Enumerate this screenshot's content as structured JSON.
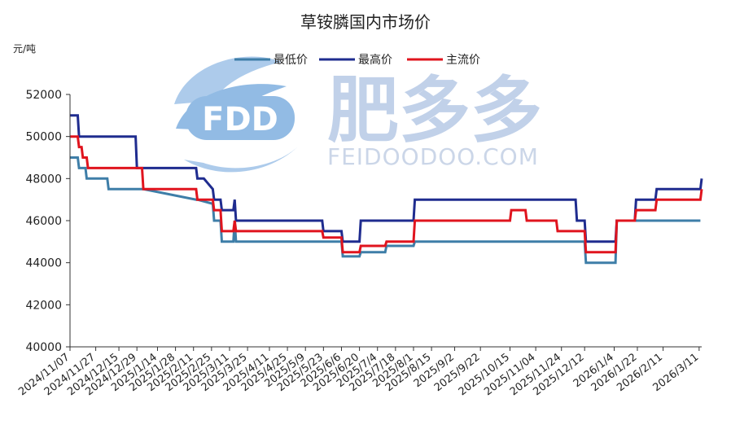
{
  "watermark": {
    "logo_text": "FDD",
    "brand_cn": "肥多多",
    "brand_en": "FEIDOODOO.COM"
  },
  "chart_data": {
    "type": "line",
    "title": "草铵膦国内市场价",
    "ylabel": "元/吨",
    "xlabel": "",
    "ylim": [
      40000,
      52000
    ],
    "yticks": [
      40000,
      42000,
      44000,
      46000,
      48000,
      50000,
      52000
    ],
    "xlim": [
      "2024/11/07",
      "2026/03/13"
    ],
    "xticks": [
      "2024/11/07",
      "2024/11/27",
      "2024/12/15",
      "2024/12/29",
      "2025/1/14",
      "2025/1/28",
      "2025/2/11",
      "2025/2/25",
      "2025/3/11",
      "2025/3/25",
      "2025/4/11",
      "2025/4/25",
      "2025/5/9",
      "2025/5/23",
      "2025/6/6",
      "2025/6/20",
      "2025/7/4",
      "2025/7/18",
      "2025/8/1",
      "2025/8/15",
      "2025/9/2",
      "2025/9/22",
      "2025/10/15",
      "2025/11/04",
      "2025/11/24",
      "2025/12/12",
      "2026/1/4",
      "2026/1/22",
      "2026/2/11",
      "2026/3/11"
    ],
    "grid": false,
    "legend": "top",
    "series": [
      {
        "name": "最低价",
        "color": "#3e7ea8",
        "x": [
          "2024/11/07",
          "2024/11/13",
          "2024/11/14",
          "2024/11/19",
          "2024/11/20",
          "2024/12/06",
          "2024/12/07",
          "2025/1/02",
          "2025/1/03",
          "2025/2/13",
          "2025/2/14",
          "2025/2/26",
          "2025/2/27",
          "2025/3/04",
          "2025/3/05",
          "2025/3/14",
          "2025/3/15",
          "2025/3/16",
          "2025/6/06",
          "2025/6/07",
          "2025/6/20",
          "2025/6/21",
          "2025/7/10",
          "2025/7/11",
          "2025/8/01",
          "2025/8/02",
          "2025/12/12",
          "2025/12/13",
          "2026/1/05",
          "2026/1/06",
          "2026/2/16",
          "2026/2/17",
          "2026/3/12"
        ],
        "values": [
          49000,
          49000,
          48500,
          48500,
          48000,
          48000,
          47500,
          47500,
          47500,
          47000,
          47000,
          46800,
          46000,
          46000,
          45000,
          45000,
          46000,
          45000,
          45000,
          44300,
          44300,
          44500,
          44500,
          44800,
          44800,
          45000,
          45000,
          44000,
          44000,
          46000,
          46000,
          46000,
          46000
        ]
      },
      {
        "name": "最高价",
        "color": "#1f2c8f",
        "x": [
          "2024/11/07",
          "2024/11/13",
          "2024/11/14",
          "2024/12/28",
          "2024/12/29",
          "2025/1/19",
          "2025/1/20",
          "2025/2/13",
          "2025/2/14",
          "2025/2/18",
          "2025/2/19",
          "2025/2/26",
          "2025/2/27",
          "2025/3/04",
          "2025/3/05",
          "2025/3/14",
          "2025/3/15",
          "2025/3/16",
          "2025/5/22",
          "2025/5/23",
          "2025/6/06",
          "2025/6/07",
          "2025/6/20",
          "2025/6/21",
          "2025/8/01",
          "2025/8/02",
          "2025/12/05",
          "2025/12/06",
          "2025/12/12",
          "2025/12/13",
          "2026/1/05",
          "2026/1/06",
          "2026/1/20",
          "2026/1/21",
          "2026/2/05",
          "2026/2/06",
          "2026/3/12",
          "2026/3/13"
        ],
        "values": [
          51000,
          51000,
          50000,
          50000,
          48500,
          48500,
          48500,
          48500,
          48000,
          48000,
          48000,
          47500,
          47000,
          47000,
          46500,
          46500,
          47000,
          46000,
          46000,
          45500,
          45500,
          45000,
          45000,
          46000,
          46000,
          47000,
          47000,
          46000,
          46000,
          45000,
          45000,
          46000,
          46000,
          47000,
          47000,
          47500,
          47500,
          48000
        ]
      },
      {
        "name": "主流价",
        "color": "#e0141e",
        "x": [
          "2024/11/07",
          "2024/11/13",
          "2024/11/14",
          "2024/11/16",
          "2024/11/17",
          "2024/11/20",
          "2024/11/21",
          "2025/1/02",
          "2025/1/03",
          "2025/2/13",
          "2025/2/14",
          "2025/2/18",
          "2025/2/19",
          "2025/2/26",
          "2025/2/27",
          "2025/3/04",
          "2025/3/05",
          "2025/3/14",
          "2025/3/15",
          "2025/3/16",
          "2025/5/22",
          "2025/5/23",
          "2025/6/06",
          "2025/6/07",
          "2025/6/20",
          "2025/6/21",
          "2025/7/10",
          "2025/7/11",
          "2025/8/01",
          "2025/8/02",
          "2025/10/15",
          "2025/10/16",
          "2025/10/27",
          "2025/10/28",
          "2025/11/20",
          "2025/11/21",
          "2025/12/12",
          "2025/12/13",
          "2026/1/05",
          "2026/1/06",
          "2026/1/20",
          "2026/1/21",
          "2026/2/05",
          "2026/2/06",
          "2026/3/12",
          "2026/3/13"
        ],
        "values": [
          50000,
          50000,
          49500,
          49500,
          49000,
          49000,
          48500,
          48500,
          47500,
          47500,
          47000,
          47000,
          47000,
          47000,
          46500,
          46500,
          45500,
          45500,
          46000,
          45500,
          45500,
          45200,
          45200,
          44500,
          44500,
          44800,
          44800,
          45000,
          45000,
          46000,
          46000,
          46500,
          46500,
          46000,
          46000,
          45500,
          45500,
          44500,
          44500,
          46000,
          46000,
          46500,
          46500,
          47000,
          47000,
          47500
        ]
      }
    ]
  }
}
